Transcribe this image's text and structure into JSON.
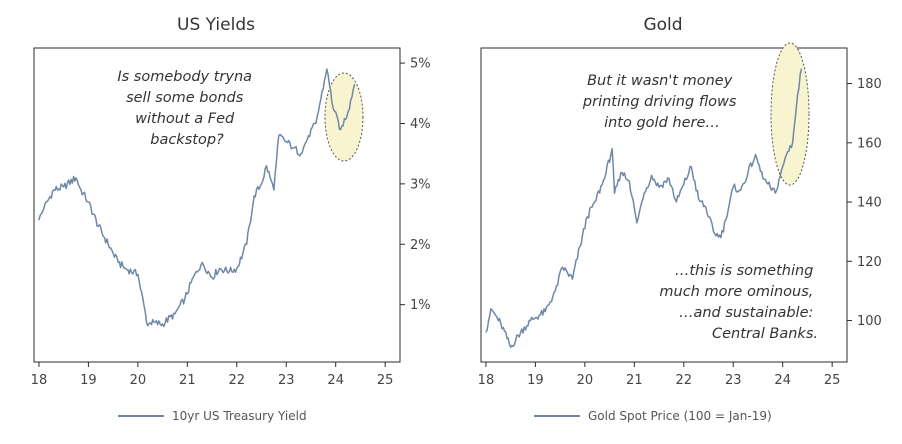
{
  "chart_data": [
    {
      "type": "line",
      "title": "US Yields",
      "legend": "10yr US Treasury Yield",
      "annotation": [
        "Is somebody tryna",
        "sell some bonds",
        "without a Fed",
        "backstop?"
      ],
      "xlabel": "",
      "ylabel": "",
      "xlim": [
        17.9,
        25.3
      ],
      "ylim": [
        0.05,
        5.25
      ],
      "y_axis_side": "right",
      "xticks": [
        "18",
        "19",
        "20",
        "21",
        "22",
        "23",
        "24",
        "25"
      ],
      "yticks": [
        "1%",
        "2%",
        "3%",
        "4%",
        "5%"
      ],
      "series": [
        {
          "name": "10yr US Treasury Yield",
          "color": "#6f88a6",
          "x": [
            18.0,
            18.1,
            18.3,
            18.5,
            18.75,
            18.85,
            19.0,
            19.2,
            19.4,
            19.6,
            19.75,
            20.0,
            20.2,
            20.25,
            20.5,
            20.75,
            20.95,
            21.15,
            21.3,
            21.5,
            21.65,
            21.85,
            22.0,
            22.2,
            22.35,
            22.5,
            22.6,
            22.75,
            22.85,
            23.0,
            23.15,
            23.3,
            23.45,
            23.6,
            23.82,
            23.95,
            24.1,
            24.25,
            24.38
          ],
          "y": [
            2.4,
            2.6,
            2.9,
            2.95,
            3.1,
            2.9,
            2.7,
            2.3,
            2.0,
            1.7,
            1.6,
            1.5,
            0.65,
            0.7,
            0.68,
            0.85,
            1.1,
            1.5,
            1.7,
            1.45,
            1.6,
            1.55,
            1.6,
            2.0,
            2.8,
            3.0,
            3.3,
            2.9,
            3.8,
            3.7,
            3.6,
            3.5,
            3.8,
            4.0,
            4.9,
            4.25,
            3.9,
            4.2,
            4.65
          ]
        }
      ]
    },
    {
      "type": "line",
      "title": "Gold",
      "legend": "Gold Spot Price (100 = Jan-19)",
      "annotation_top": [
        "But it wasn't money",
        "printing driving flows",
        "into gold here…"
      ],
      "annotation_bottom": [
        "…this is something",
        "much more ominous,",
        "…and sustainable:",
        "Central Banks."
      ],
      "xlabel": "",
      "ylabel": "",
      "xlim": [
        17.9,
        25.3
      ],
      "ylim": [
        86,
        192
      ],
      "y_axis_side": "right",
      "xticks": [
        "18",
        "19",
        "20",
        "21",
        "22",
        "23",
        "24",
        "25"
      ],
      "yticks": [
        "100",
        "120",
        "140",
        "160",
        "180"
      ],
      "series": [
        {
          "name": "Gold Spot Price (100 = Jan-19)",
          "color": "#6f88a6",
          "x": [
            18.0,
            18.1,
            18.3,
            18.5,
            18.7,
            18.9,
            19.0,
            19.2,
            19.4,
            19.55,
            19.75,
            19.9,
            20.05,
            20.2,
            20.4,
            20.55,
            20.6,
            20.75,
            20.9,
            21.05,
            21.2,
            21.35,
            21.5,
            21.7,
            21.85,
            22.0,
            22.15,
            22.3,
            22.45,
            22.6,
            22.75,
            22.85,
            23.0,
            23.15,
            23.3,
            23.45,
            23.6,
            23.75,
            23.85,
            24.0,
            24.1,
            24.2,
            24.3,
            24.38
          ],
          "y": [
            96,
            104,
            99,
            91,
            96,
            100,
            101,
            103,
            110,
            118,
            114,
            125,
            135,
            140,
            148,
            158,
            143,
            150,
            147,
            133,
            143,
            149,
            145,
            148,
            140,
            146,
            152,
            141,
            138,
            130,
            128,
            134,
            145,
            144,
            150,
            156,
            148,
            145,
            143,
            152,
            157,
            160,
            176,
            185
          ]
        }
      ]
    }
  ]
}
